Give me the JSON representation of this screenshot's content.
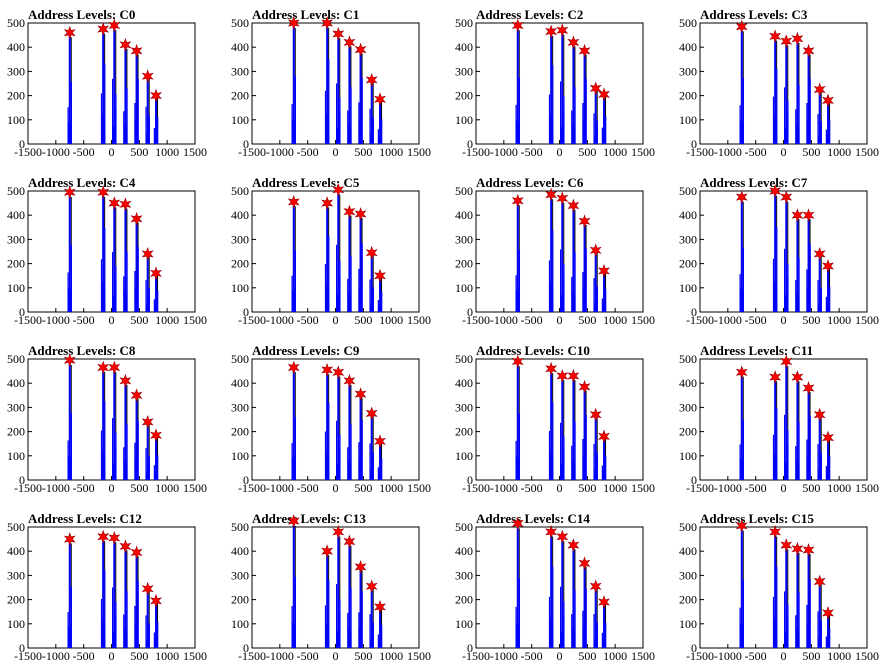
{
  "chart_data": [
    {
      "type": "bar",
      "title": "Address Levels: C0",
      "xlim": [
        -1500,
        1500
      ],
      "ylim": [
        0,
        500
      ],
      "xticks": [
        -1500,
        -1000,
        -500,
        0,
        500,
        1000,
        1500
      ],
      "yticks": [
        0,
        100,
        200,
        300,
        400,
        500
      ],
      "peaks_x": [
        -750,
        -150,
        50,
        250,
        450,
        650,
        800
      ],
      "peaks_y": [
        460,
        475,
        490,
        410,
        385,
        280,
        200
      ]
    },
    {
      "type": "bar",
      "title": "Address Levels: C1",
      "xlim": [
        -1500,
        1500
      ],
      "ylim": [
        0,
        500
      ],
      "xticks": [
        -1500,
        -1000,
        -500,
        0,
        500,
        1000,
        1500
      ],
      "yticks": [
        0,
        100,
        200,
        300,
        400,
        500
      ],
      "peaks_x": [
        -750,
        -150,
        50,
        250,
        450,
        650,
        800
      ],
      "peaks_y": [
        500,
        500,
        455,
        420,
        390,
        265,
        185
      ]
    },
    {
      "type": "bar",
      "title": "Address Levels: C2",
      "xlim": [
        -1500,
        1500
      ],
      "ylim": [
        0,
        500
      ],
      "xticks": [
        -1500,
        -1000,
        -500,
        0,
        500,
        1000,
        1500
      ],
      "yticks": [
        0,
        100,
        200,
        300,
        400,
        500
      ],
      "peaks_x": [
        -750,
        -150,
        50,
        250,
        450,
        650,
        800
      ],
      "peaks_y": [
        490,
        465,
        470,
        420,
        385,
        230,
        205
      ]
    },
    {
      "type": "bar",
      "title": "Address Levels: C3",
      "xlim": [
        -1500,
        1500
      ],
      "ylim": [
        0,
        500
      ],
      "xticks": [
        -1500,
        -1000,
        -500,
        0,
        500,
        1000,
        1500
      ],
      "yticks": [
        0,
        100,
        200,
        300,
        400,
        500
      ],
      "peaks_x": [
        -750,
        -150,
        50,
        250,
        450,
        650,
        800
      ],
      "peaks_y": [
        485,
        445,
        425,
        435,
        385,
        225,
        180
      ]
    },
    {
      "type": "bar",
      "title": "Address Levels: C4",
      "xlim": [
        -1500,
        1500
      ],
      "ylim": [
        0,
        500
      ],
      "xticks": [
        -1500,
        -1000,
        -500,
        0,
        500,
        1000,
        1500
      ],
      "yticks": [
        0,
        100,
        200,
        300,
        400,
        500
      ],
      "peaks_x": [
        -750,
        -150,
        50,
        250,
        450,
        650,
        800
      ],
      "peaks_y": [
        495,
        495,
        450,
        445,
        385,
        240,
        160
      ]
    },
    {
      "type": "bar",
      "title": "Address Levels: C5",
      "xlim": [
        -1500,
        1500
      ],
      "ylim": [
        0,
        500
      ],
      "xticks": [
        -1500,
        -1000,
        -500,
        0,
        500,
        1000,
        1500
      ],
      "yticks": [
        0,
        100,
        200,
        300,
        400,
        500
      ],
      "peaks_x": [
        -750,
        -150,
        50,
        250,
        450,
        650,
        800
      ],
      "peaks_y": [
        455,
        450,
        505,
        415,
        405,
        245,
        150
      ]
    },
    {
      "type": "bar",
      "title": "Address Levels: C6",
      "xlim": [
        -1500,
        1500
      ],
      "ylim": [
        0,
        500
      ],
      "xticks": [
        -1500,
        -1000,
        -500,
        0,
        500,
        1000,
        1500
      ],
      "yticks": [
        0,
        100,
        200,
        300,
        400,
        500
      ],
      "peaks_x": [
        -750,
        -150,
        50,
        250,
        450,
        650,
        800
      ],
      "peaks_y": [
        460,
        485,
        470,
        440,
        375,
        255,
        170
      ]
    },
    {
      "type": "bar",
      "title": "Address Levels: C7",
      "xlim": [
        -1500,
        1500
      ],
      "ylim": [
        0,
        500
      ],
      "xticks": [
        -1500,
        -1000,
        -500,
        0,
        500,
        1000,
        1500
      ],
      "yticks": [
        0,
        100,
        200,
        300,
        400,
        500
      ],
      "peaks_x": [
        -750,
        -150,
        50,
        250,
        450,
        650,
        800
      ],
      "peaks_y": [
        475,
        500,
        475,
        400,
        400,
        240,
        190
      ]
    },
    {
      "type": "bar",
      "title": "Address Levels: C8",
      "xlim": [
        -1500,
        1500
      ],
      "ylim": [
        0,
        500
      ],
      "xticks": [
        -1500,
        -1000,
        -500,
        0,
        500,
        1000,
        1500
      ],
      "yticks": [
        0,
        100,
        200,
        300,
        400,
        500
      ],
      "peaks_x": [
        -750,
        -150,
        50,
        250,
        450,
        650,
        800
      ],
      "peaks_y": [
        495,
        465,
        465,
        410,
        350,
        240,
        185
      ]
    },
    {
      "type": "bar",
      "title": "Address Levels: C9",
      "xlim": [
        -1500,
        1500
      ],
      "ylim": [
        0,
        500
      ],
      "xticks": [
        -1500,
        -1000,
        -500,
        0,
        500,
        1000,
        1500
      ],
      "yticks": [
        0,
        100,
        200,
        300,
        400,
        500
      ],
      "peaks_x": [
        -750,
        -150,
        50,
        250,
        450,
        650,
        800
      ],
      "peaks_y": [
        465,
        455,
        445,
        410,
        355,
        275,
        160
      ]
    },
    {
      "type": "bar",
      "title": "Address Levels: C10",
      "xlim": [
        -1500,
        1500
      ],
      "ylim": [
        0,
        500
      ],
      "xticks": [
        -1500,
        -1000,
        -500,
        0,
        500,
        1000,
        1500
      ],
      "yticks": [
        0,
        100,
        200,
        300,
        400,
        500
      ],
      "peaks_x": [
        -750,
        -150,
        50,
        250,
        450,
        650,
        800
      ],
      "peaks_y": [
        490,
        460,
        430,
        430,
        385,
        270,
        180
      ]
    },
    {
      "type": "bar",
      "title": "Address Levels: C11",
      "xlim": [
        -1500,
        1500
      ],
      "ylim": [
        0,
        500
      ],
      "xticks": [
        -1500,
        -1000,
        -500,
        0,
        500,
        1000,
        1500
      ],
      "yticks": [
        0,
        100,
        200,
        300,
        400,
        500
      ],
      "peaks_x": [
        -750,
        -150,
        50,
        250,
        450,
        650,
        800
      ],
      "peaks_y": [
        445,
        425,
        490,
        425,
        380,
        270,
        175
      ]
    },
    {
      "type": "bar",
      "title": "Address Levels: C12",
      "xlim": [
        -1500,
        1500
      ],
      "ylim": [
        0,
        500
      ],
      "xticks": [
        -1500,
        -1000,
        -500,
        0,
        500,
        1000,
        1500
      ],
      "yticks": [
        0,
        100,
        200,
        300,
        400,
        500
      ],
      "peaks_x": [
        -750,
        -150,
        50,
        250,
        450,
        650,
        800
      ],
      "peaks_y": [
        450,
        460,
        455,
        420,
        395,
        245,
        195
      ]
    },
    {
      "type": "bar",
      "title": "Address Levels: C13",
      "xlim": [
        -1500,
        1500
      ],
      "ylim": [
        0,
        500
      ],
      "xticks": [
        -1500,
        -1000,
        -500,
        0,
        500,
        1000,
        1500
      ],
      "yticks": [
        0,
        100,
        200,
        300,
        400,
        500
      ],
      "peaks_x": [
        -750,
        -150,
        50,
        250,
        450,
        650,
        800
      ],
      "peaks_y": [
        525,
        400,
        480,
        440,
        335,
        255,
        170
      ]
    },
    {
      "type": "bar",
      "title": "Address Levels: C14",
      "xlim": [
        -1500,
        1500
      ],
      "ylim": [
        0,
        500
      ],
      "xticks": [
        -1500,
        -1000,
        -500,
        0,
        500,
        1000,
        1500
      ],
      "yticks": [
        0,
        100,
        200,
        300,
        400,
        500
      ],
      "peaks_x": [
        -750,
        -150,
        50,
        250,
        450,
        650,
        800
      ],
      "peaks_y": [
        515,
        480,
        460,
        425,
        350,
        255,
        190
      ]
    },
    {
      "type": "bar",
      "title": "Address Levels: C15",
      "xlim": [
        -1500,
        1500
      ],
      "ylim": [
        0,
        500
      ],
      "xticks": [
        -1500,
        -1000,
        -500,
        0,
        500,
        1000,
        1500
      ],
      "yticks": [
        0,
        100,
        200,
        300,
        400,
        500
      ],
      "peaks_x": [
        -750,
        -150,
        50,
        250,
        450,
        650,
        800
      ],
      "peaks_y": [
        505,
        480,
        425,
        410,
        405,
        275,
        145
      ]
    }
  ],
  "colors": {
    "bar": "#0000ff",
    "marker": "#ff0000",
    "marker_outline": "#990000",
    "axis": "#000000",
    "hist_line": "#000000"
  }
}
